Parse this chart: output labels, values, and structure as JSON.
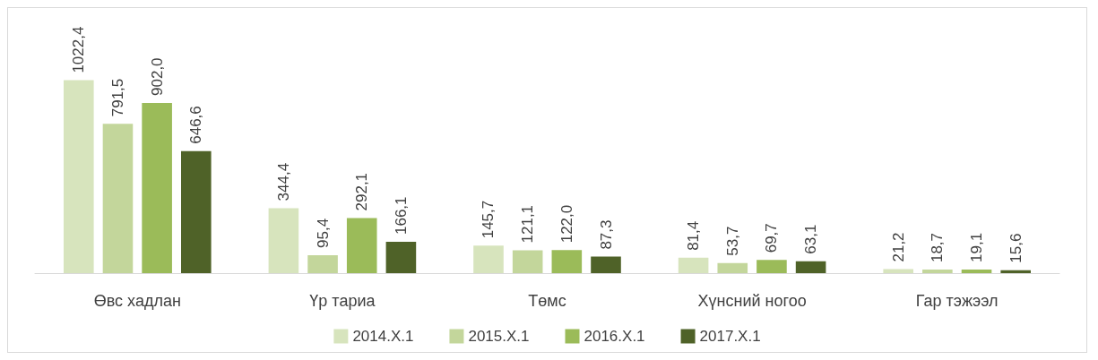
{
  "chart_data": {
    "type": "bar",
    "categories": [
      "Өвс хадлан",
      "Үр тариа",
      "Төмс",
      "Хүнсний ногоо",
      "Гар тэжээл"
    ],
    "series": [
      {
        "name": "2014.X.1",
        "color": "#d7e4bd",
        "values": [
          1022.4,
          344.4,
          145.7,
          81.4,
          21.2
        ],
        "value_labels": [
          "1022,4",
          "344,4",
          "145,7",
          "81,4",
          "21,2"
        ]
      },
      {
        "name": "2015.X.1",
        "color": "#c3d69b",
        "values": [
          791.5,
          95.4,
          121.1,
          53.7,
          18.7
        ],
        "value_labels": [
          "791,5",
          "95,4",
          "121,1",
          "53,7",
          "18,7"
        ]
      },
      {
        "name": "2016.X.1",
        "color": "#9bbb59",
        "values": [
          902.0,
          292.1,
          122.0,
          69.7,
          19.1
        ],
        "value_labels": [
          "902,0",
          "292,1",
          "122,0",
          "69,7",
          "19,1"
        ]
      },
      {
        "name": "2017.X.1",
        "color": "#4f6228",
        "values": [
          646.6,
          166.1,
          87.3,
          63.1,
          15.6
        ],
        "value_labels": [
          "646,6",
          "166,1",
          "87,3",
          "63,1",
          "15,6"
        ]
      }
    ],
    "legend": "bottom"
  }
}
